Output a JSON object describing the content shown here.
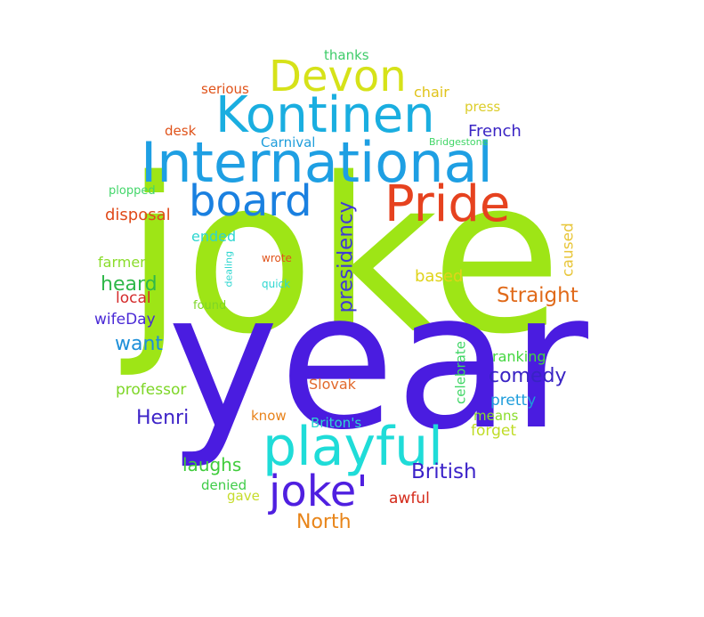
{
  "words": {
    "joke": {
      "text": "joke",
      "color": "#9ee516"
    },
    "year": {
      "text": "year",
      "color": "#4a1ce0"
    },
    "international": {
      "text": "International",
      "color": "#1e9fe3"
    },
    "playful": {
      "text": "playful",
      "color": "#1fdcd8"
    },
    "kontinen": {
      "text": "Kontinen",
      "color": "#1aaee0"
    },
    "pride": {
      "text": "Pride",
      "color": "#e6421f"
    },
    "board": {
      "text": "board",
      "color": "#1a80e0"
    },
    "devon": {
      "text": "Devon",
      "color": "#d6e219"
    },
    "joke_quote": {
      "text": "joke'",
      "color": "#4f1fe0"
    },
    "presidency": {
      "text": "presidency",
      "color": "#3f3ad6"
    },
    "straight": {
      "text": "Straight",
      "color": "#e06a1a"
    },
    "british": {
      "text": "British",
      "color": "#3b22c9"
    },
    "comedy": {
      "text": "comedy",
      "color": "#3923c4"
    },
    "henri": {
      "text": "Henri",
      "color": "#3e24c8"
    },
    "north": {
      "text": "North",
      "color": "#e8851a"
    },
    "heard": {
      "text": "heard",
      "color": "#2fb84a"
    },
    "want": {
      "text": "want",
      "color": "#1d8fd9"
    },
    "laughs": {
      "text": "laughs",
      "color": "#3fcc3b"
    },
    "disposal": {
      "text": "disposal",
      "color": "#e04a1a"
    },
    "french": {
      "text": "French",
      "color": "#3a24c4"
    },
    "based": {
      "text": "based",
      "color": "#e0d31a"
    },
    "caused": {
      "text": "caused",
      "color": "#e8c63a"
    },
    "celebrate": {
      "text": "celebrate",
      "color": "#3fd665"
    },
    "professor": {
      "text": "professor",
      "color": "#7dd626"
    },
    "pretty": {
      "text": "pretty",
      "color": "#1e9ddb"
    },
    "slovak": {
      "text": "Slovak",
      "color": "#e26a2c"
    },
    "awful": {
      "text": "awful",
      "color": "#d42a1a"
    },
    "forget": {
      "text": "forget",
      "color": "#bfdc26"
    },
    "ranking": {
      "text": "ranking",
      "color": "#43d63f"
    },
    "means": {
      "text": "means",
      "color": "#8adc2a"
    },
    "local": {
      "text": "local",
      "color": "#d42a2a"
    },
    "wifeday": {
      "text": "wifeDay",
      "color": "#4a2ad6"
    },
    "farmer": {
      "text": "farmer",
      "color": "#8adc2a"
    },
    "ended": {
      "text": "ended",
      "color": "#2ed6d0"
    },
    "denied": {
      "text": "denied",
      "color": "#3fcc48"
    },
    "gave": {
      "text": "gave",
      "color": "#c6dc2a"
    },
    "know": {
      "text": "know",
      "color": "#e8821a"
    },
    "britons": {
      "text": "Briton's",
      "color": "#2ed6d0"
    },
    "serious": {
      "text": "serious",
      "color": "#e0531a"
    },
    "thanks": {
      "text": "thanks",
      "color": "#3fcc6a"
    },
    "chair": {
      "text": "chair",
      "color": "#e0c31a"
    },
    "press": {
      "text": "press",
      "color": "#dccd2a"
    },
    "desk": {
      "text": "desk",
      "color": "#e0531a"
    },
    "carnival": {
      "text": "Carnival",
      "color": "#1e9ddb"
    },
    "bridgestone": {
      "text": "Bridgestone",
      "color": "#3fd665"
    },
    "plopped": {
      "text": "plopped",
      "color": "#43d66a"
    },
    "found": {
      "text": "found",
      "color": "#7dd626"
    },
    "wrote": {
      "text": "wrote",
      "color": "#e0531a"
    },
    "quick": {
      "text": "quick",
      "color": "#2ed6d0"
    },
    "dealing": {
      "text": "dealing",
      "color": "#2ed6d0"
    }
  }
}
